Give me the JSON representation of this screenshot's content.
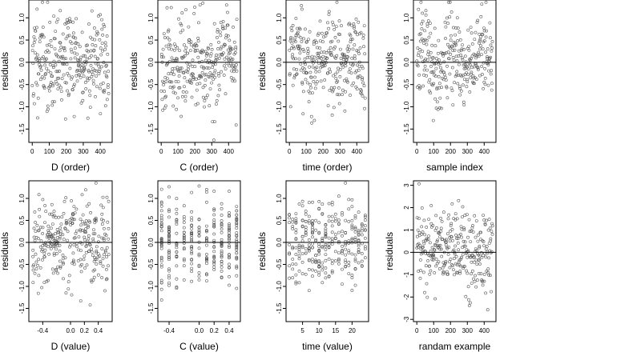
{
  "chart_data": [
    {
      "type": "scatter",
      "xlabel": "D (order)",
      "ylabel": "residuals",
      "xlim": [
        -20,
        470
      ],
      "ylim": [
        -1.8,
        1.4
      ],
      "xticks": [
        0,
        100,
        200,
        300,
        400
      ],
      "yticks": [
        1,
        0.5,
        0,
        -0.5,
        -1,
        -1.5
      ],
      "ytick_labels": [
        "1.0",
        "0.5",
        "0.0",
        "-0.5",
        "-1.0",
        "-1.5"
      ],
      "reference_line": 0,
      "gen": {
        "mode": "index",
        "n": 300,
        "amp": 0.55,
        "seed": 11,
        "wave": 0.15
      }
    },
    {
      "type": "scatter",
      "xlabel": "C (order)",
      "ylabel": "residuals",
      "xlim": [
        -20,
        470
      ],
      "ylim": [
        -1.8,
        1.4
      ],
      "xticks": [
        0,
        100,
        200,
        300,
        400
      ],
      "yticks": [
        1,
        0.5,
        0,
        -0.5,
        -1,
        -1.5
      ],
      "ytick_labels": [
        "1.0",
        "0.5",
        "0.0",
        "-0.5",
        "-1.0",
        "-1.5"
      ],
      "reference_line": 0,
      "gen": {
        "mode": "index",
        "n": 300,
        "amp": 0.5,
        "seed": 23,
        "wave": 0.1
      }
    },
    {
      "type": "scatter",
      "xlabel": "time (order)",
      "ylabel": "residuals",
      "xlim": [
        -20,
        470
      ],
      "ylim": [
        -1.8,
        1.4
      ],
      "xticks": [
        0,
        100,
        200,
        300,
        400
      ],
      "yticks": [
        1,
        0.5,
        0,
        -0.5,
        -1,
        -1.5
      ],
      "ytick_labels": [
        "1.0",
        "0.5",
        "0.0",
        "-0.5",
        "-1.0",
        "-1.5"
      ],
      "reference_line": 0,
      "gen": {
        "mode": "index",
        "n": 300,
        "amp": 0.5,
        "seed": 37,
        "wave": 0.12
      }
    },
    {
      "type": "scatter",
      "xlabel": "sample index",
      "ylabel": "residuals",
      "xlim": [
        -20,
        470
      ],
      "ylim": [
        -1.8,
        1.4
      ],
      "xticks": [
        0,
        100,
        200,
        300,
        400
      ],
      "yticks": [
        1,
        0.5,
        0,
        -0.5,
        -1,
        -1.5
      ],
      "ytick_labels": [
        "1.0",
        "0.5",
        "0.0",
        "-0.5",
        "-1.0",
        "-1.5"
      ],
      "reference_line": 0,
      "gen": {
        "mode": "index",
        "n": 300,
        "amp": 0.5,
        "seed": 41,
        "wave": 0.3
      }
    },
    {
      "type": "scatter",
      "xlabel": "D (value)",
      "ylabel": "residuals",
      "xlim": [
        -0.6,
        0.6
      ],
      "ylim": [
        -1.8,
        1.4
      ],
      "xticks": [
        -0.4,
        0,
        0.2,
        0.4
      ],
      "xtick_labels": [
        "-0.4",
        "0.0",
        "0.2",
        "0.4"
      ],
      "yticks": [
        1,
        0.5,
        0,
        -0.5,
        -1,
        -1.5
      ],
      "ytick_labels": [
        "1.0",
        "0.5",
        "0.0",
        "-0.5",
        "-1.0",
        "-1.5"
      ],
      "reference_line": 0,
      "gen": {
        "mode": "continuous",
        "n": 300,
        "amp": 0.5,
        "seed": 53,
        "xmin": -0.55,
        "xmax": 0.55
      }
    },
    {
      "type": "scatter",
      "xlabel": "C (value)",
      "ylabel": "residuals",
      "xlim": [
        -0.55,
        0.55
      ],
      "ylim": [
        -1.8,
        1.4
      ],
      "xticks": [
        -0.4,
        0,
        0.2,
        0.4
      ],
      "xtick_labels": [
        "-0.4",
        "0.0",
        "0.2",
        "0.4"
      ],
      "yticks": [
        1,
        0.5,
        0,
        -0.5,
        -1,
        -1.5
      ],
      "ytick_labels": [
        "1.0",
        "0.5",
        "0.0",
        "-0.5",
        "-1.0",
        "-1.5"
      ],
      "reference_line": 0,
      "gen": {
        "mode": "discrete",
        "n": 300,
        "amp": 0.45,
        "seed": 67,
        "levels": [
          -0.5,
          -0.4,
          -0.3,
          -0.2,
          -0.1,
          0,
          0.1,
          0.2,
          0.3,
          0.4,
          0.5
        ]
      }
    },
    {
      "type": "scatter",
      "xlabel": "time (value)",
      "ylabel": "residuals",
      "xlim": [
        0,
        25
      ],
      "ylim": [
        -1.8,
        1.4
      ],
      "xticks": [
        5,
        10,
        15,
        20
      ],
      "yticks": [
        1,
        0.5,
        0,
        -0.5,
        -1,
        -1.5
      ],
      "ytick_labels": [
        "1.0",
        "0.5",
        "0.0",
        "-0.5",
        "-1.0",
        "-1.5"
      ],
      "reference_line": 0,
      "gen": {
        "mode": "discrete",
        "n": 300,
        "amp": 0.45,
        "seed": 79,
        "levels": [
          1,
          2,
          3,
          4,
          5,
          6,
          7,
          8,
          9,
          10,
          11,
          12,
          13,
          14,
          15,
          16,
          17,
          18,
          19,
          20,
          21,
          22,
          23,
          24
        ]
      }
    },
    {
      "type": "scatter",
      "xlabel": "randam example",
      "ylabel": "residuals",
      "xlim": [
        -20,
        470
      ],
      "ylim": [
        -3.1,
        3.2
      ],
      "xticks": [
        0,
        100,
        200,
        300,
        400
      ],
      "yticks": [
        3,
        2,
        1,
        0,
        -1,
        -2,
        -3
      ],
      "reference_line": 0,
      "gen": {
        "mode": "index",
        "n": 300,
        "amp": 1.0,
        "seed": 97,
        "wave": 0
      }
    }
  ]
}
